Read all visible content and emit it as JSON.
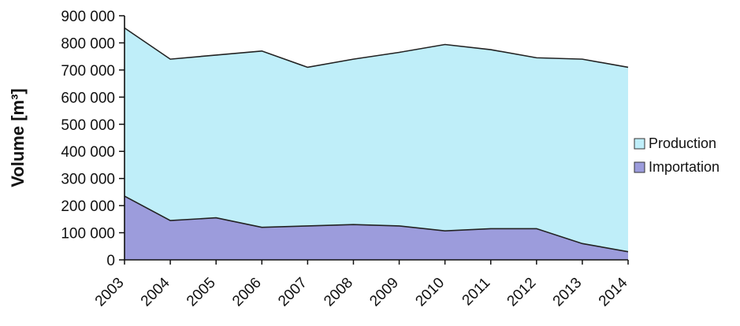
{
  "chart_data": {
    "type": "area",
    "stacked": true,
    "ylabel": "Volume [m³]",
    "xlabel": "",
    "categories": [
      "2003",
      "2004",
      "2005",
      "2006",
      "2007",
      "2008",
      "2009",
      "2010",
      "2011",
      "2012",
      "2013",
      "2014"
    ],
    "ylim": [
      0,
      900000
    ],
    "yticks": [
      0,
      100000,
      200000,
      300000,
      400000,
      500000,
      600000,
      700000,
      800000,
      900000
    ],
    "ytick_labels": [
      "0",
      "100 000",
      "200 000",
      "300 000",
      "400 000",
      "500 000",
      "600 000",
      "700 000",
      "800 000",
      "900 000"
    ],
    "series": [
      {
        "name": "Importation",
        "color": "#9c9cdc",
        "values": [
          235000,
          145000,
          155000,
          120000,
          125000,
          130000,
          125000,
          107000,
          115000,
          115000,
          60000,
          30000
        ]
      },
      {
        "name": "Production",
        "color": "#bfeef9",
        "values": [
          620000,
          595000,
          600000,
          650000,
          585000,
          610000,
          640000,
          687000,
          660000,
          630000,
          680000,
          680000
        ]
      }
    ],
    "legend_position": "right",
    "grid": false,
    "stack_totals": [
      855000,
      740000,
      755000,
      770000,
      710000,
      740000,
      765000,
      794000,
      775000,
      745000,
      740000,
      710000
    ]
  }
}
